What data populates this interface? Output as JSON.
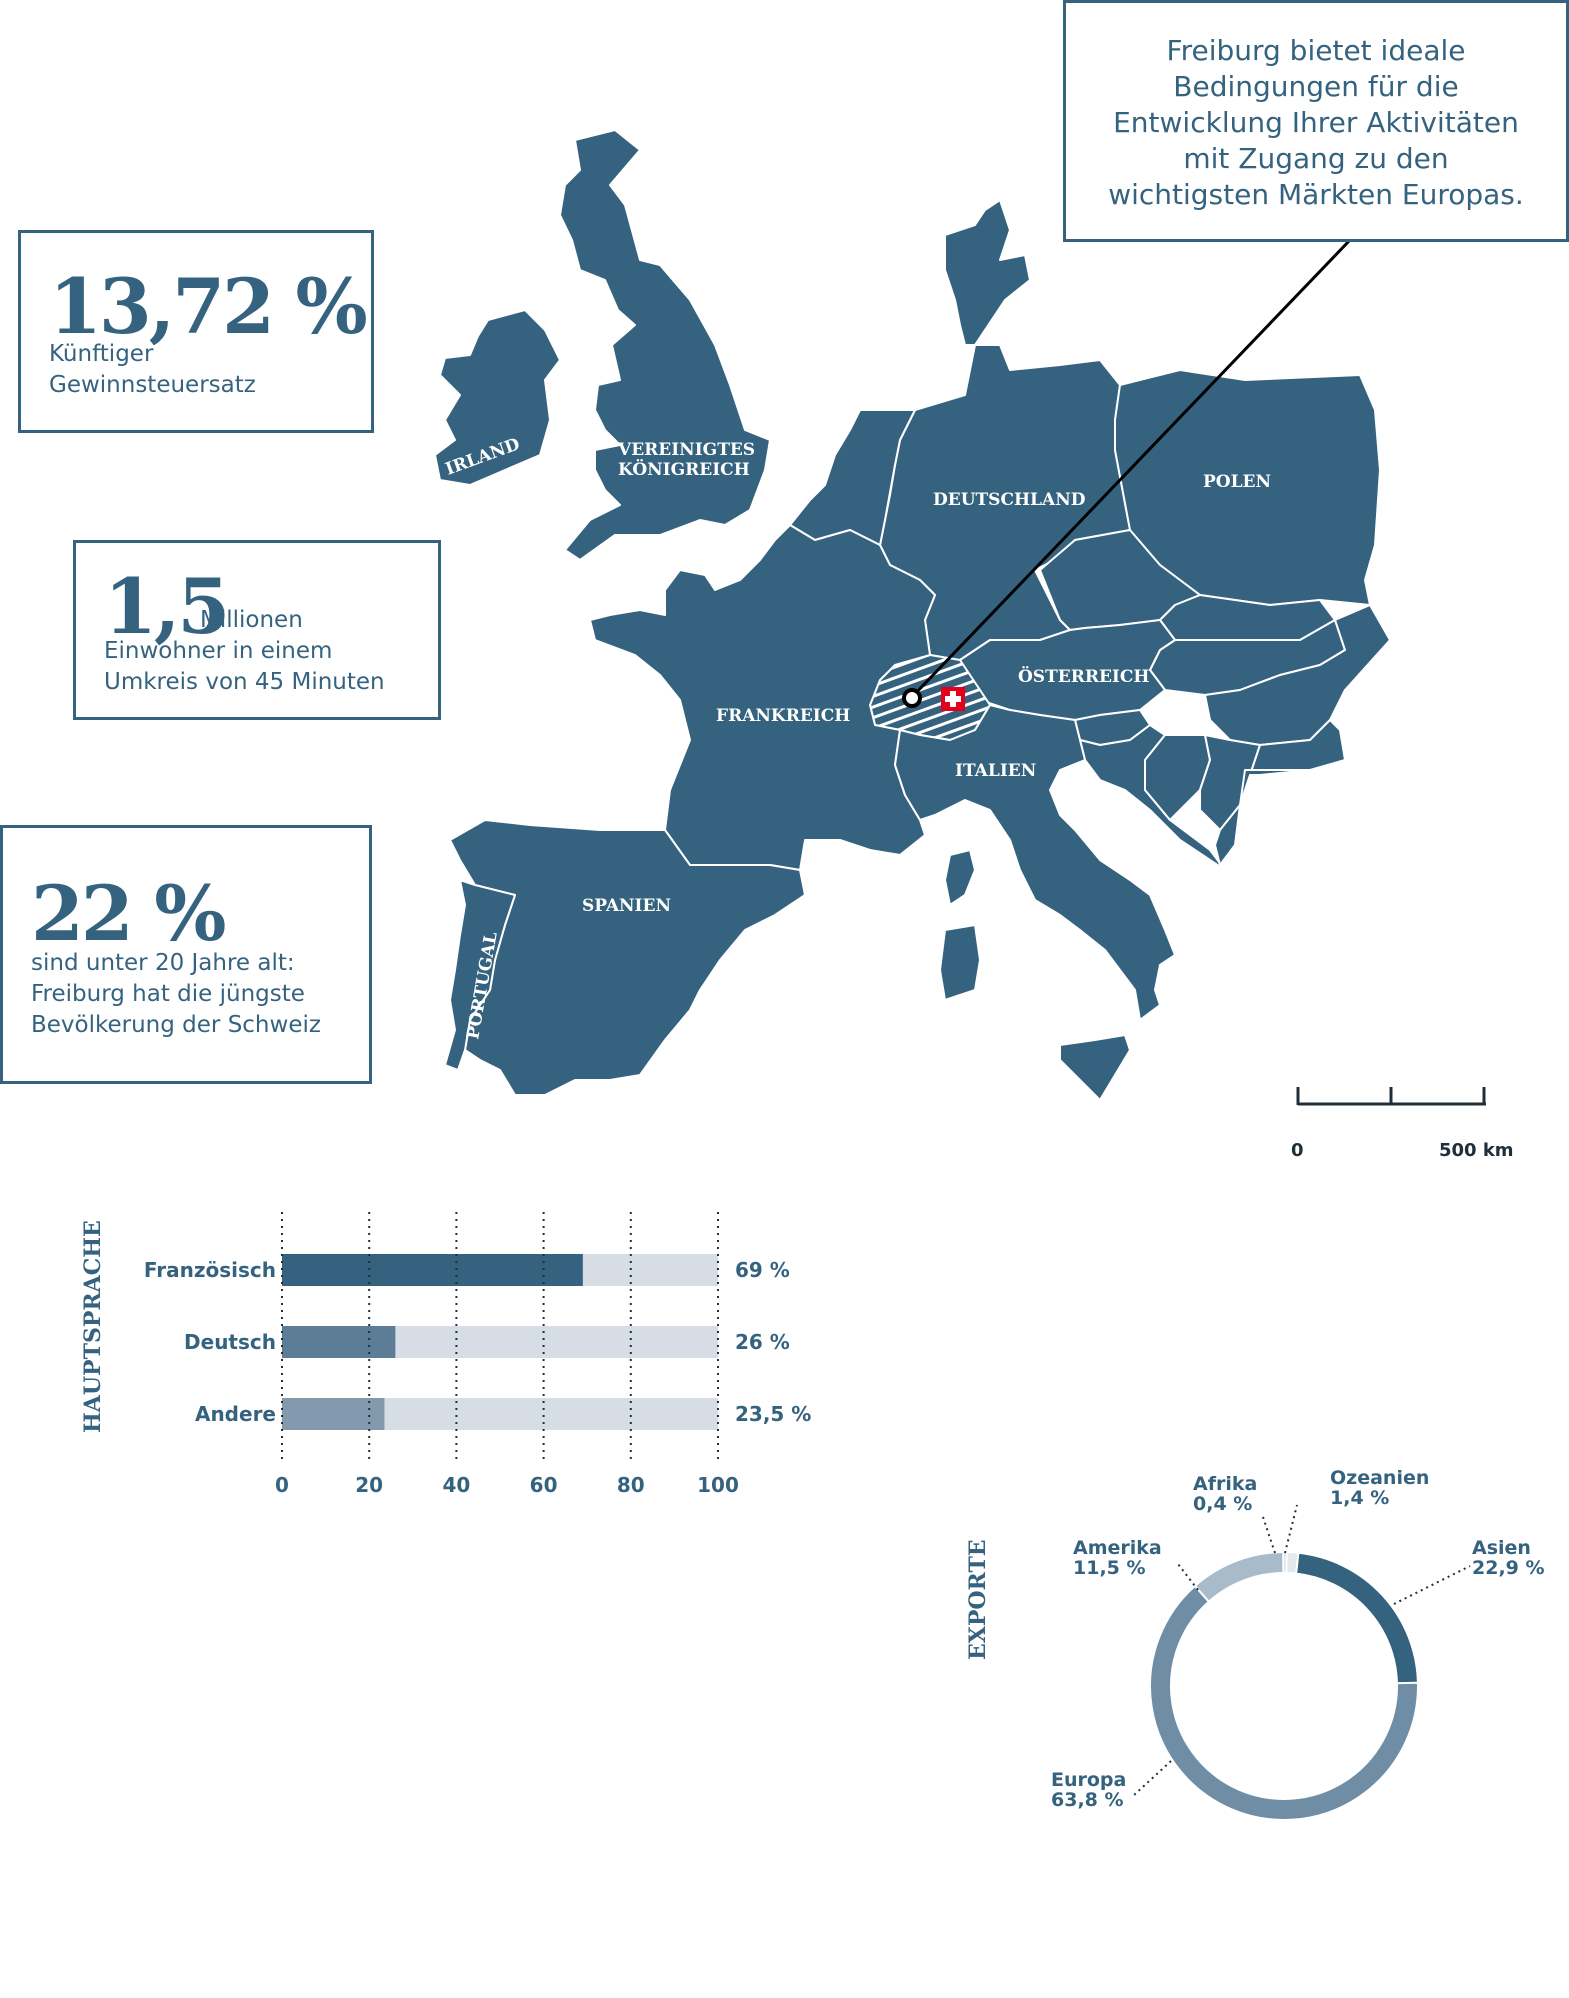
{
  "stats": [
    {
      "value": "13,72 %",
      "text_lines": [
        "Künftiger",
        "Gewinnsteuersatz"
      ]
    },
    {
      "value": "1,5",
      "unit": "Millionen",
      "text_lines": [
        "Einwohner in einem",
        "Umkreis von 45 Minuten"
      ]
    },
    {
      "value": "22 %",
      "text_lines": [
        "sind unter 20 Jahre alt:",
        "Freiburg hat die jüngste",
        "Bevölkerung der Schweiz"
      ]
    }
  ],
  "callout_lines": [
    "Freiburg bietet ideale",
    "Bedingungen für die",
    "Entwicklung Ihrer Aktivitäten",
    "mit Zugang zu den",
    "wichtigsten Märkten Europas."
  ],
  "map": {
    "labels": {
      "irland": "IRLAND",
      "uk_1": "VEREINIGTES",
      "uk_2": "KÖNIGREICH",
      "deutschland": "DEUTSCHLAND",
      "polen": "POLEN",
      "frankreich": "FRANKREICH",
      "oesterreich": "ÖSTERREICH",
      "italien": "ITALIEN",
      "spanien": "SPANIEN",
      "portugal": "PORTUGAL"
    },
    "scale_start": "0",
    "scale_end": "500 km",
    "colors": {
      "land": "#35637f",
      "border": "#ffffff",
      "swiss_flag": "#e3001b"
    }
  },
  "chart_data": [
    {
      "type": "bar",
      "title": "HAUPTSPRACHE",
      "categories": [
        "Französisch",
        "Deutsch",
        "Andere"
      ],
      "values": [
        69,
        26,
        23.5
      ],
      "value_labels": [
        "69 %",
        "26 %",
        "23,5 %"
      ],
      "xlim": [
        0,
        100
      ],
      "xticks": [
        "0",
        "20",
        "40",
        "60",
        "80",
        "100"
      ],
      "grid": true,
      "colors": [
        "#35637f",
        "#5d7d96",
        "#8299ae"
      ],
      "track_color": "#d6dde5"
    },
    {
      "type": "pie",
      "title": "EXPORTE",
      "donut": true,
      "slices": [
        {
          "name": "Ozeanien",
          "value": 1.4,
          "label": "1,4 %",
          "color": "#e4e9ee"
        },
        {
          "name": "Asien",
          "value": 22.9,
          "label": "22,9 %",
          "color": "#35637f"
        },
        {
          "name": "Europa",
          "value": 63.8,
          "label": "63,8 %",
          "color": "#6f8ea5"
        },
        {
          "name": "Amerika",
          "value": 11.5,
          "label": "11,5 %",
          "color": "#a9bbc9"
        },
        {
          "name": "Afrika",
          "value": 0.4,
          "label": "0,4 %",
          "color": "#cfd9e1"
        }
      ]
    }
  ]
}
